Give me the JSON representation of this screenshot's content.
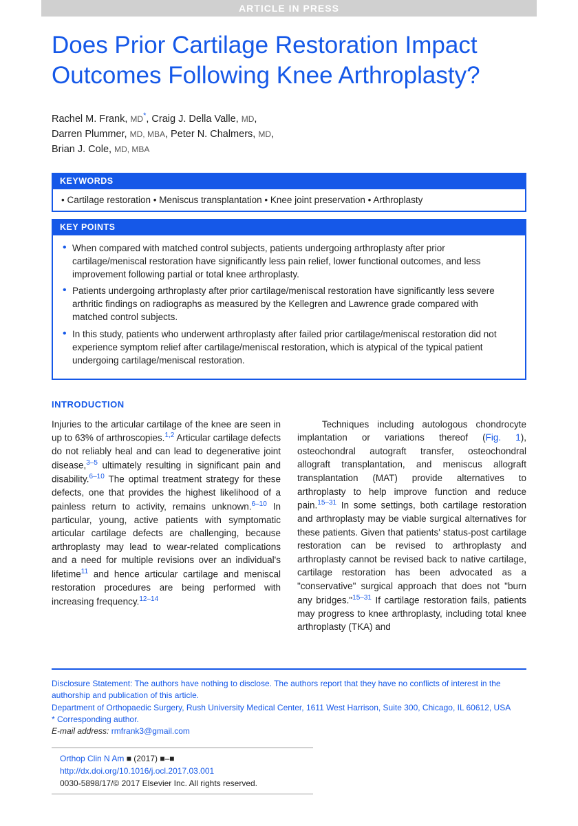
{
  "banner": "ARTICLE IN PRESS",
  "title": "Does Prior Cartilage Restoration Impact Outcomes Following Knee Arthroplasty?",
  "authors_html": "Rachel M. Frank, <span class='degree'>MD</span><span class='star'>*</span>, Craig J. Della Valle, <span class='degree'>MD</span>,<br>Darren Plummer, <span class='degree'>MD, MBA</span>, Peter N. Chalmers, <span class='degree'>MD</span>,<br>Brian J. Cole, <span class='degree'>MD, MBA</span>",
  "keywords_header": "KEYWORDS",
  "keywords_body": "• Cartilage restoration • Meniscus transplantation • Knee joint preservation • Arthroplasty",
  "keypoints_header": "KEY POINTS",
  "keypoints": [
    "When compared with matched control subjects, patients undergoing arthroplasty after prior cartilage/meniscal restoration have significantly less pain relief, lower functional outcomes, and less improvement following partial or total knee arthroplasty.",
    "Patients undergoing arthroplasty after prior cartilage/meniscal restoration have significantly less severe arthritic findings on radiographs as measured by the Kellegren and Lawrence grade compared with matched control subjects.",
    "In this study, patients who underwent arthroplasty after failed prior cartilage/meniscal restoration did not experience symptom relief after cartilage/meniscal restoration, which is atypical of the typical patient undergoing cartilage/meniscal restoration."
  ],
  "intro_heading": "INTRODUCTION",
  "col1": "Injuries to the articular cartilage of the knee are seen in up to 63% of arthroscopies.<span class='ref-link'>1,2</span> Articular cartilage defects do not reliably heal and can lead to degenerative joint disease,<span class='ref-link'>3–5</span> ultimately resulting in significant pain and disability.<span class='ref-link'>6–10</span> The optimal treatment strategy for these defects, one that provides the highest likelihood of a painless return to activity, remains unknown.<span class='ref-link'>6–10</span> In particular, young, active patients with symptomatic articular cartilage defects are challenging, because arthroplasty may lead to wear-related complications and a need for multiple revisions over an individual's lifetime<span class='ref-link'>11</span> and hence articular cartilage and meniscal restoration procedures are being performed with increasing frequency.<span class='ref-link'>12–14</span>",
  "col2": "&nbsp;&nbsp;&nbsp;Techniques including autologous chondrocyte implantation or variations thereof (<span class='fig-link'>Fig. 1</span>), osteochondral autograft transfer, osteochondral allograft transplantation, and meniscus allograft transplantation (MAT) provide alternatives to arthroplasty to help improve function and reduce pain.<span class='ref-link'>15–31</span> In some settings, both cartilage restoration and arthroplasty may be viable surgical alternatives for these patients. Given that patients' status-post cartilage restoration can be revised to arthroplasty and arthroplasty cannot be revised back to native cartilage, cartilage restoration has been advocated as a \"conservative\" surgical approach that does not \"burn any bridges.\"<span class='ref-link'>15–31</span> If cartilage restoration fails, patients may progress to knee arthroplasty, including total knee arthroplasty (TKA) and",
  "disclosure_line1": "Disclosure Statement: The authors have nothing to disclose. The authors report that they have no conflicts of interest in the authorship and publication of this article.",
  "disclosure_line2": "Department of Orthopaedic Surgery, Rush University Medical Center, 1611 West Harrison, Suite 300, Chicago, IL 60612, USA",
  "corresponding": "* Corresponding author.",
  "email_label": "E-mail address:",
  "email": "rmfrank3@gmail.com",
  "journal": {
    "line1a": "Orthop Clin N Am",
    "line1b": "■ (2017) ■–■",
    "doi": "http://dx.doi.org/10.1016/j.ocl.2017.03.001",
    "copyright": "0030-5898/17/© 2017 Elsevier Inc. All rights reserved."
  },
  "colors": {
    "primary": "#1558e8",
    "banner_bg": "#d0d0d0",
    "text": "#222"
  }
}
